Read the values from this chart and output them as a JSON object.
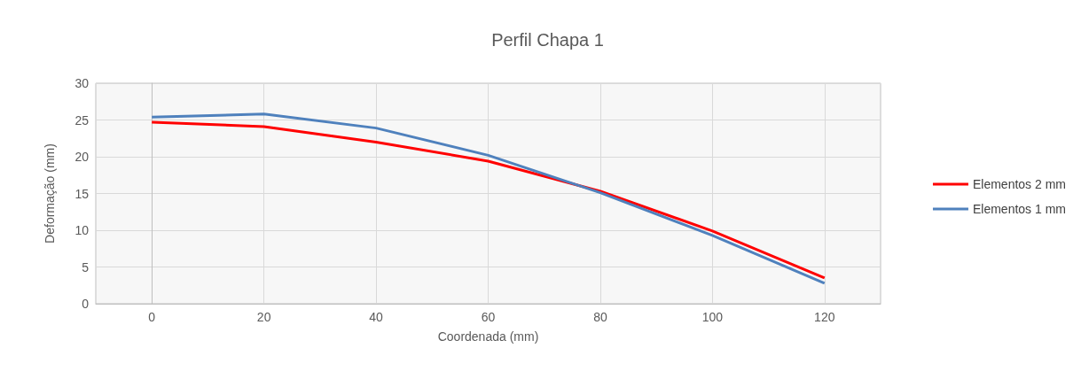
{
  "chart_data": {
    "type": "line",
    "title": "Perfil Chapa 1",
    "xlabel": "Coordenada (mm)",
    "ylabel": "Deformação (mm)",
    "x": [
      0,
      20,
      40,
      60,
      80,
      100,
      120
    ],
    "series": [
      {
        "name": "Elementos 2 mm",
        "color": "#ff0000",
        "values": [
          24.7,
          24.1,
          22.0,
          19.4,
          15.3,
          9.9,
          3.5
        ]
      },
      {
        "name": "Elementos 1 mm",
        "color": "#4f81bd",
        "values": [
          25.4,
          25.8,
          23.9,
          20.2,
          15.1,
          9.3,
          2.8
        ]
      }
    ],
    "xlim": [
      -10,
      130
    ],
    "xticks": [
      0,
      20,
      40,
      60,
      80,
      100,
      120
    ],
    "ylim": [
      0,
      30
    ],
    "yticks": [
      0,
      5,
      10,
      15,
      20,
      25,
      30
    ],
    "grid": true,
    "legend": "right",
    "marker": "none",
    "line_style": "solid"
  }
}
